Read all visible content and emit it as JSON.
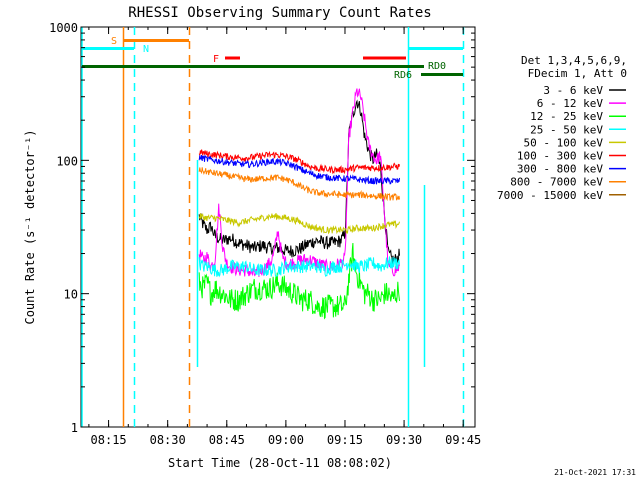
{
  "chart_data": {
    "type": "line",
    "title": "RHESSI Observing Summary Count Rates",
    "xlabel": "Start Time (28-Oct-11 08:08:02)",
    "ylabel": "Count Rate (s⁻¹ detector⁻¹)",
    "yscale": "log",
    "xlim_minutes": [
      0,
      100
    ],
    "ylim": [
      1,
      1000
    ],
    "x_ticks": [
      {
        "label": "08:15",
        "minute": 7
      },
      {
        "label": "08:30",
        "minute": 22
      },
      {
        "label": "08:45",
        "minute": 37
      },
      {
        "label": "09:00",
        "minute": 52
      },
      {
        "label": "09:15",
        "minute": 67
      },
      {
        "label": "09:30",
        "minute": 82
      },
      {
        "label": "09:45",
        "minute": 97
      }
    ],
    "y_ticks": [
      {
        "label": "1",
        "value": 1
      },
      {
        "label": "10",
        "value": 10
      },
      {
        "label": "100",
        "value": 100
      },
      {
        "label": "1000",
        "value": 1000
      }
    ],
    "legend_header": [
      "Det 1,3,4,5,6,9,",
      "FDecim 1, Att 0"
    ],
    "series": [
      {
        "name": "3 - 6 keV",
        "color": "#000000",
        "points": [
          [
            30,
            38
          ],
          [
            31,
            33
          ],
          [
            32,
            30
          ],
          [
            33,
            32
          ],
          [
            34,
            27
          ],
          [
            36,
            25
          ],
          [
            38,
            26
          ],
          [
            40,
            24
          ],
          [
            42,
            23
          ],
          [
            44,
            22
          ],
          [
            46,
            23
          ],
          [
            48,
            22
          ],
          [
            50,
            22
          ],
          [
            52,
            21
          ],
          [
            54,
            21
          ],
          [
            56,
            22
          ],
          [
            58,
            24
          ],
          [
            60,
            25
          ],
          [
            62,
            24
          ],
          [
            64,
            24
          ],
          [
            66,
            25
          ],
          [
            67,
            28
          ],
          [
            67.5,
            60
          ],
          [
            68,
            160
          ],
          [
            69,
            220
          ],
          [
            70,
            280
          ],
          [
            71,
            240
          ],
          [
            72,
            150
          ],
          [
            73,
            120
          ],
          [
            74,
            100
          ],
          [
            75,
            110
          ],
          [
            76,
            90
          ],
          [
            77,
            40
          ],
          [
            78,
            20
          ],
          [
            79,
            18
          ],
          [
            80,
            18
          ],
          [
            81,
            20
          ]
        ]
      },
      {
        "name": "6 - 12 keV",
        "color": "#ff00ff",
        "points": [
          [
            30,
            20
          ],
          [
            31,
            18
          ],
          [
            32,
            19
          ],
          [
            33,
            16
          ],
          [
            34,
            18
          ],
          [
            35,
            45
          ],
          [
            36,
            22
          ],
          [
            37,
            17
          ],
          [
            38,
            16
          ],
          [
            40,
            15
          ],
          [
            42,
            15
          ],
          [
            44,
            14
          ],
          [
            46,
            15
          ],
          [
            48,
            17
          ],
          [
            49,
            20
          ],
          [
            50,
            30
          ],
          [
            51,
            19
          ],
          [
            52,
            17
          ],
          [
            54,
            17
          ],
          [
            56,
            18
          ],
          [
            58,
            18
          ],
          [
            60,
            17
          ],
          [
            62,
            16
          ],
          [
            64,
            16
          ],
          [
            66,
            17
          ],
          [
            67,
            18
          ],
          [
            67.5,
            50
          ],
          [
            68,
            150
          ],
          [
            69,
            230
          ],
          [
            70,
            330
          ],
          [
            71,
            300
          ],
          [
            72,
            200
          ],
          [
            73,
            130
          ],
          [
            74,
            110
          ],
          [
            75,
            100
          ],
          [
            76,
            110
          ],
          [
            77,
            40
          ],
          [
            78,
            16
          ],
          [
            79,
            15
          ],
          [
            80,
            15
          ],
          [
            81,
            16
          ]
        ]
      },
      {
        "name": "12 - 25 keV",
        "color": "#00ff00",
        "points": [
          [
            30,
            12
          ],
          [
            31,
            11
          ],
          [
            32,
            12
          ],
          [
            33,
            10
          ],
          [
            34,
            11
          ],
          [
            36,
            10
          ],
          [
            38,
            9
          ],
          [
            40,
            9
          ],
          [
            42,
            10
          ],
          [
            44,
            11
          ],
          [
            46,
            11
          ],
          [
            48,
            11
          ],
          [
            50,
            12
          ],
          [
            52,
            11
          ],
          [
            54,
            10
          ],
          [
            56,
            9
          ],
          [
            58,
            9
          ],
          [
            60,
            8
          ],
          [
            62,
            8
          ],
          [
            64,
            8
          ],
          [
            66,
            8
          ],
          [
            67,
            8
          ],
          [
            67.5,
            10
          ],
          [
            68,
            13
          ],
          [
            69,
            20
          ],
          [
            70,
            14
          ],
          [
            71,
            12
          ],
          [
            72,
            10
          ],
          [
            73,
            10
          ],
          [
            74,
            9
          ],
          [
            75,
            9
          ],
          [
            76,
            9
          ],
          [
            77,
            10
          ],
          [
            78,
            10
          ],
          [
            79,
            9
          ],
          [
            80,
            10
          ],
          [
            81,
            11
          ]
        ]
      },
      {
        "name": "25 - 50 keV",
        "color": "#00ffff",
        "points": [
          [
            30,
            17
          ],
          [
            31,
            16
          ],
          [
            32,
            16
          ],
          [
            34,
            15
          ],
          [
            36,
            15
          ],
          [
            38,
            16
          ],
          [
            40,
            16
          ],
          [
            42,
            16
          ],
          [
            44,
            15
          ],
          [
            46,
            15
          ],
          [
            48,
            15
          ],
          [
            50,
            15
          ],
          [
            52,
            16
          ],
          [
            54,
            16
          ],
          [
            56,
            16
          ],
          [
            58,
            16
          ],
          [
            60,
            16
          ],
          [
            62,
            15
          ],
          [
            64,
            16
          ],
          [
            66,
            16
          ],
          [
            68,
            17
          ],
          [
            70,
            16
          ],
          [
            72,
            16
          ],
          [
            74,
            17
          ],
          [
            76,
            16
          ],
          [
            78,
            17
          ],
          [
            80,
            17
          ],
          [
            81,
            17
          ]
        ]
      },
      {
        "name": "50 - 100 keV",
        "color": "#c8c800",
        "points": [
          [
            30,
            38
          ],
          [
            32,
            37
          ],
          [
            34,
            37
          ],
          [
            36,
            36
          ],
          [
            38,
            35
          ],
          [
            40,
            34
          ],
          [
            42,
            35
          ],
          [
            44,
            36
          ],
          [
            46,
            37
          ],
          [
            48,
            38
          ],
          [
            50,
            38
          ],
          [
            52,
            37
          ],
          [
            54,
            36
          ],
          [
            56,
            34
          ],
          [
            58,
            32
          ],
          [
            60,
            31
          ],
          [
            62,
            30
          ],
          [
            64,
            30
          ],
          [
            66,
            30
          ],
          [
            68,
            30
          ],
          [
            70,
            31
          ],
          [
            72,
            31
          ],
          [
            74,
            31
          ],
          [
            76,
            32
          ],
          [
            78,
            33
          ],
          [
            80,
            33
          ],
          [
            81,
            34
          ]
        ]
      },
      {
        "name": "100 - 300 keV",
        "color": "#ff0000",
        "points": [
          [
            30,
            115
          ],
          [
            32,
            112
          ],
          [
            34,
            110
          ],
          [
            36,
            108
          ],
          [
            38,
            106
          ],
          [
            40,
            105
          ],
          [
            42,
            104
          ],
          [
            44,
            106
          ],
          [
            46,
            108
          ],
          [
            48,
            110
          ],
          [
            50,
            110
          ],
          [
            52,
            107
          ],
          [
            54,
            103
          ],
          [
            56,
            97
          ],
          [
            58,
            90
          ],
          [
            60,
            87
          ],
          [
            62,
            86
          ],
          [
            64,
            85
          ],
          [
            66,
            85
          ],
          [
            68,
            86
          ],
          [
            70,
            88
          ],
          [
            72,
            88
          ],
          [
            74,
            88
          ],
          [
            76,
            88
          ],
          [
            78,
            89
          ],
          [
            80,
            90
          ],
          [
            81,
            90
          ]
        ]
      },
      {
        "name": "300 - 800 keV",
        "color": "#0000ff",
        "points": [
          [
            30,
            105
          ],
          [
            32,
            102
          ],
          [
            34,
            100
          ],
          [
            36,
            98
          ],
          [
            38,
            96
          ],
          [
            40,
            94
          ],
          [
            42,
            93
          ],
          [
            44,
            94
          ],
          [
            46,
            96
          ],
          [
            48,
            98
          ],
          [
            50,
            98
          ],
          [
            52,
            95
          ],
          [
            54,
            91
          ],
          [
            56,
            85
          ],
          [
            58,
            80
          ],
          [
            60,
            77
          ],
          [
            62,
            75
          ],
          [
            64,
            74
          ],
          [
            66,
            73
          ],
          [
            68,
            73
          ],
          [
            70,
            72
          ],
          [
            72,
            71
          ],
          [
            74,
            70
          ],
          [
            76,
            70
          ],
          [
            78,
            70
          ],
          [
            80,
            70
          ],
          [
            81,
            70
          ]
        ]
      },
      {
        "name": "800 - 7000 keV",
        "color": "#ff8000",
        "points": [
          [
            30,
            85
          ],
          [
            32,
            82
          ],
          [
            34,
            80
          ],
          [
            36,
            78
          ],
          [
            38,
            76
          ],
          [
            40,
            74
          ],
          [
            42,
            72
          ],
          [
            44,
            72
          ],
          [
            46,
            73
          ],
          [
            48,
            74
          ],
          [
            50,
            74
          ],
          [
            52,
            72
          ],
          [
            54,
            68
          ],
          [
            56,
            63
          ],
          [
            58,
            59
          ],
          [
            60,
            57
          ],
          [
            62,
            56
          ],
          [
            64,
            56
          ],
          [
            66,
            55
          ],
          [
            68,
            55
          ],
          [
            70,
            55
          ],
          [
            72,
            55
          ],
          [
            74,
            54
          ],
          [
            76,
            54
          ],
          [
            78,
            53
          ],
          [
            80,
            53
          ],
          [
            81,
            53
          ]
        ]
      },
      {
        "name": "7000 - 15000 keV",
        "color": "#a06000",
        "points": []
      }
    ],
    "annotations": [
      {
        "label": "S",
        "color": "#ff8000"
      },
      {
        "label": "N",
        "color": "#00ffff"
      },
      {
        "label": "F",
        "color": "#ff0000"
      },
      {
        "label": "RD0",
        "color": "#006400"
      },
      {
        "label": "RD6",
        "color": "#006400"
      }
    ],
    "timestamp": "21-Oct-2021 17:31"
  }
}
